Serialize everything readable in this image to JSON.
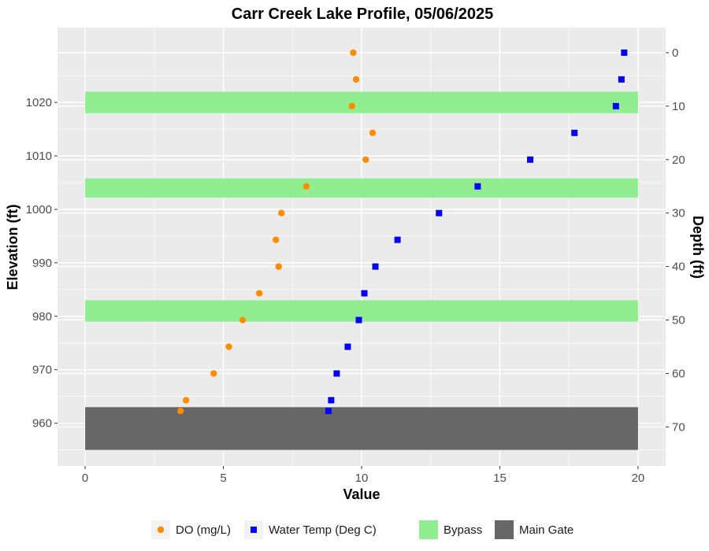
{
  "chart_data": {
    "type": "scatter",
    "title": "Carr Creek Lake Profile,  05/06/2025",
    "xlabel": "Value",
    "ylabel": "Elevation (ft)",
    "y2label": "Depth (ft)",
    "xlim": [
      -1,
      21
    ],
    "ylim": [
      952,
      1034
    ],
    "x_ticks": [
      0,
      5,
      10,
      15,
      20
    ],
    "y_ticks": [
      960,
      970,
      980,
      990,
      1000,
      1010,
      1020
    ],
    "y2_ticks": [
      0,
      10,
      20,
      30,
      40,
      50,
      60,
      70
    ],
    "surface_elevation": 1029.3,
    "grid": true,
    "legend_position": "bottom",
    "colors": {
      "panel": "#ebebeb",
      "grid": "#ffffff",
      "do": "#ff8c00",
      "temp": "#0000ff",
      "bypass": "#90ee90",
      "main_gate": "#666666"
    },
    "bands": [
      {
        "name": "Bypass",
        "x": [
          0,
          20
        ],
        "y": [
          1018,
          1022
        ]
      },
      {
        "name": "Bypass",
        "x": [
          0,
          20
        ],
        "y": [
          1002.2,
          1005.8
        ]
      },
      {
        "name": "Bypass",
        "x": [
          0,
          20
        ],
        "y": [
          979,
          983
        ]
      },
      {
        "name": "Main Gate",
        "x": [
          0,
          20
        ],
        "y": [
          955,
          963
        ]
      }
    ],
    "series": [
      {
        "name": "DO (mg/L)",
        "marker": "circle",
        "x": [
          9.7,
          9.8,
          9.65,
          10.4,
          10.15,
          8.0,
          7.1,
          6.9,
          7.0,
          6.3,
          5.7,
          5.2,
          4.65,
          3.65,
          3.45
        ],
        "y": [
          1029.3,
          1024.3,
          1019.3,
          1014.3,
          1009.3,
          1004.3,
          999.3,
          994.3,
          989.3,
          984.3,
          979.3,
          974.3,
          969.3,
          964.3,
          962.3
        ]
      },
      {
        "name": "Water Temp (Deg C)",
        "marker": "square",
        "x": [
          19.5,
          19.4,
          19.2,
          17.7,
          16.1,
          14.2,
          12.8,
          11.3,
          10.5,
          10.1,
          9.9,
          9.5,
          9.1,
          8.9,
          8.8
        ],
        "y": [
          1029.3,
          1024.3,
          1019.3,
          1014.3,
          1009.3,
          1004.3,
          999.3,
          994.3,
          989.3,
          984.3,
          979.3,
          974.3,
          969.3,
          964.3,
          962.3
        ]
      }
    ]
  },
  "legend": {
    "items": [
      {
        "label": "DO (mg/L)",
        "kind": "point-circle",
        "color": "#ff8c00"
      },
      {
        "label": "Water Temp (Deg C)",
        "kind": "point-square",
        "color": "#0000ff"
      },
      {
        "label": "Bypass",
        "kind": "fill",
        "color": "#90ee90"
      },
      {
        "label": "Main Gate",
        "kind": "fill",
        "color": "#666666"
      }
    ]
  }
}
